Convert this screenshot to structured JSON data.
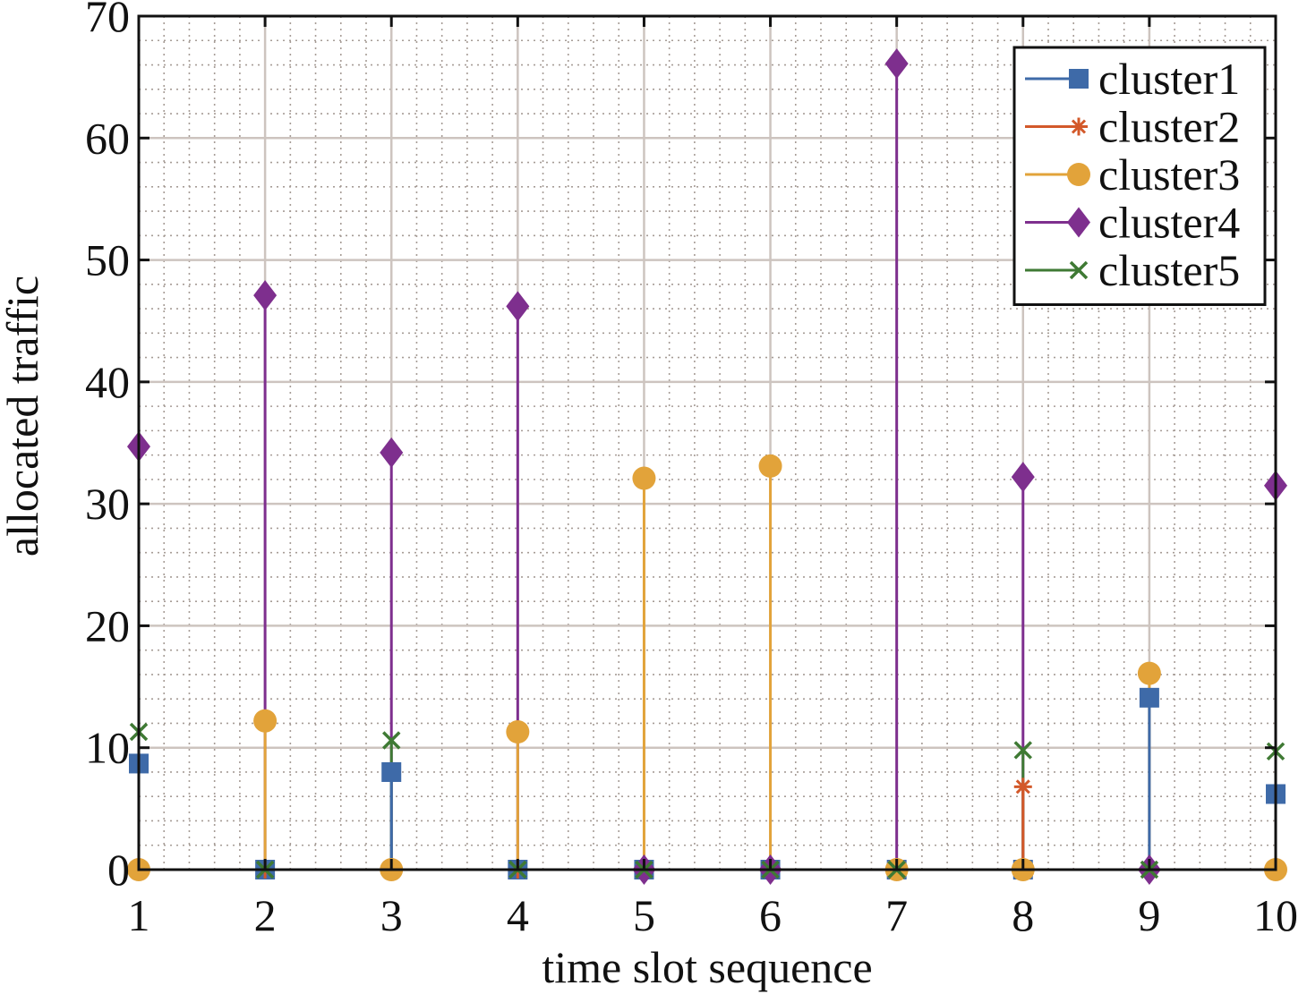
{
  "chart_data": {
    "type": "stem",
    "title": "",
    "xlabel": "time slot sequence",
    "ylabel": "allocated traffic",
    "xlim": [
      1,
      10
    ],
    "ylim": [
      0,
      70
    ],
    "x": [
      1,
      2,
      3,
      4,
      5,
      6,
      7,
      8,
      9,
      10
    ],
    "xticks": [
      "1",
      "2",
      "3",
      "4",
      "5",
      "6",
      "7",
      "8",
      "9",
      "10"
    ],
    "yticks": [
      "0",
      "10",
      "20",
      "30",
      "40",
      "50",
      "60",
      "70"
    ],
    "grid": "major and minor",
    "legend_position": "top-right",
    "series": [
      {
        "name": "cluster1",
        "marker": "square",
        "color": "#3E6AA8",
        "values": [
          8.7,
          0,
          8.0,
          0,
          0,
          0,
          0,
          0,
          14.1,
          6.2
        ]
      },
      {
        "name": "cluster2",
        "marker": "asterisk",
        "color": "#D3592A",
        "values": [
          0,
          0,
          0,
          0,
          0,
          0,
          0,
          6.8,
          0,
          0
        ]
      },
      {
        "name": "cluster3",
        "marker": "circle",
        "color": "#E2A33A",
        "values": [
          0,
          12.2,
          0,
          11.3,
          32.1,
          33.1,
          0,
          0,
          16.1,
          0
        ]
      },
      {
        "name": "cluster4",
        "marker": "diamond",
        "color": "#7E2F8E",
        "values": [
          34.7,
          47.1,
          34.2,
          46.2,
          0,
          0,
          66.1,
          32.2,
          0,
          31.5
        ]
      },
      {
        "name": "cluster5",
        "marker": "x",
        "color": "#3F7A34",
        "values": [
          11.3,
          0,
          10.6,
          0,
          0,
          0,
          0,
          9.8,
          0,
          9.7
        ]
      }
    ]
  }
}
